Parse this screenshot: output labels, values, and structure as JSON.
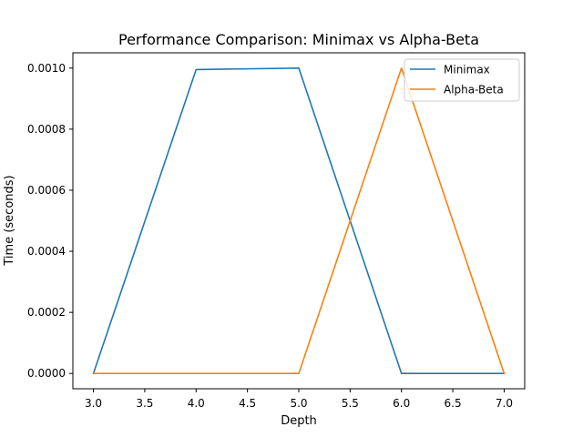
{
  "chart_data": {
    "type": "line",
    "title": "Performance Comparison: Minimax vs Alpha-Beta",
    "xlabel": "Depth",
    "ylabel": "Time (seconds)",
    "x": [
      3,
      4,
      5,
      6,
      7
    ],
    "xlim": [
      2.8,
      7.2
    ],
    "ylim": [
      -5e-05,
      0.00105
    ],
    "xticks": [
      3.0,
      3.5,
      4.0,
      4.5,
      5.0,
      5.5,
      6.0,
      6.5,
      7.0
    ],
    "xtick_labels": [
      "3.0",
      "3.5",
      "4.0",
      "4.5",
      "5.0",
      "5.5",
      "6.0",
      "6.5",
      "7.0"
    ],
    "yticks": [
      0.0,
      0.0002,
      0.0004,
      0.0006,
      0.0008,
      0.001
    ],
    "ytick_labels": [
      "0.0000",
      "0.0002",
      "0.0004",
      "0.0006",
      "0.0008",
      "0.0010"
    ],
    "grid": false,
    "legend_position": "upper right",
    "series": [
      {
        "name": "Minimax",
        "color": "#1f77b4",
        "values": [
          0.0,
          0.000995,
          0.001,
          0.0,
          0.0
        ]
      },
      {
        "name": "Alpha-Beta",
        "color": "#ff7f0e",
        "values": [
          0.0,
          0.0,
          0.0,
          0.001,
          0.0
        ]
      }
    ]
  }
}
